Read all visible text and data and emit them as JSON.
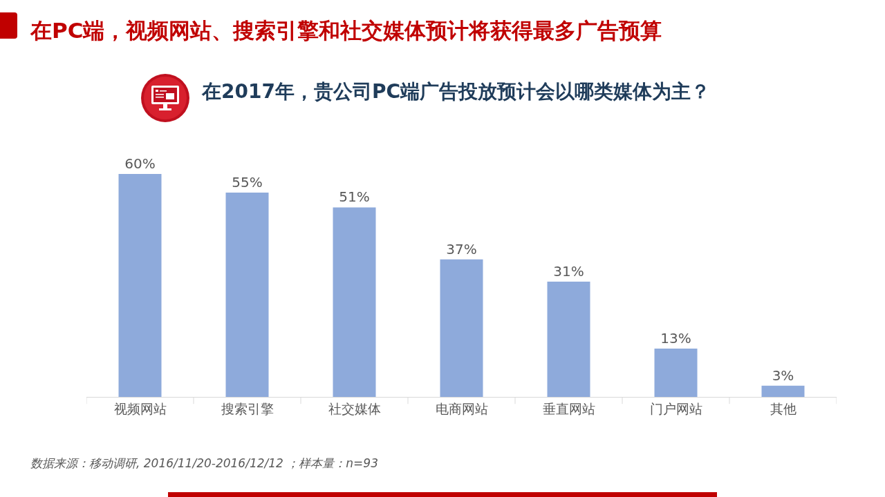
{
  "chart_data": {
    "type": "bar",
    "title": "在PC端，视频网站、搜索引擎和社交媒体预计将获得最多广告预算",
    "subtitle": "在2017年，贵公司PC端广告投放预计会以哪类媒体为主？",
    "categories": [
      "视频网站",
      "搜索引擎",
      "社交媒体",
      "电商网站",
      "垂直网站",
      "门户网站",
      "其他"
    ],
    "values": [
      60,
      55,
      51,
      37,
      31,
      13,
      3
    ],
    "value_labels": [
      "60%",
      "55%",
      "51%",
      "37%",
      "31%",
      "13%",
      "3%"
    ],
    "color": "#8eaadb",
    "annotations": [
      "数据来源：移动调研, 2016/11/20-2016/12/12 ；样本量：n=93"
    ]
  }
}
